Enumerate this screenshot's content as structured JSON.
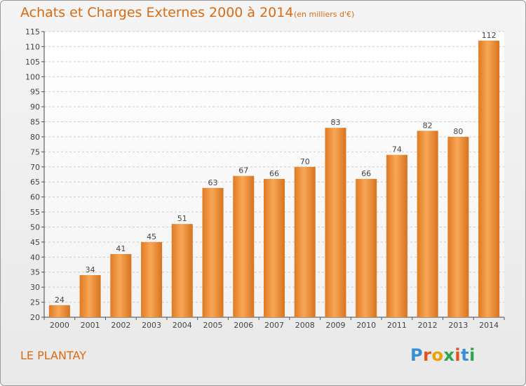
{
  "header": {
    "title": "Achats et Charges Externes 2000 à 2014",
    "unit": "(en milliers d'€)"
  },
  "footer": {
    "commune": "LE PLANTAY",
    "logo_text": "Proxiti"
  },
  "colors": {
    "bar": "#ee8a30",
    "bar_light": "#f8aa5a",
    "title": "#d96b12",
    "grid": "#cccccc"
  },
  "chart_data": {
    "type": "bar",
    "categories": [
      "2000",
      "2001",
      "2002",
      "2003",
      "2004",
      "2005",
      "2006",
      "2007",
      "2008",
      "2009",
      "2010",
      "2011",
      "2012",
      "2013",
      "2014"
    ],
    "values": [
      24,
      34,
      41,
      45,
      51,
      63,
      67,
      66,
      70,
      83,
      66,
      74,
      82,
      80,
      112
    ],
    "data_labels": [
      "24",
      "34",
      "41",
      "45",
      "51",
      "63",
      "67",
      "66",
      "70",
      "83",
      "66",
      "74",
      "82",
      "80",
      "112"
    ],
    "ylim": [
      20,
      115
    ],
    "yticks": [
      20,
      25,
      30,
      35,
      40,
      45,
      50,
      55,
      60,
      65,
      70,
      75,
      80,
      85,
      90,
      95,
      100,
      105,
      110,
      115
    ],
    "grid": true
  }
}
